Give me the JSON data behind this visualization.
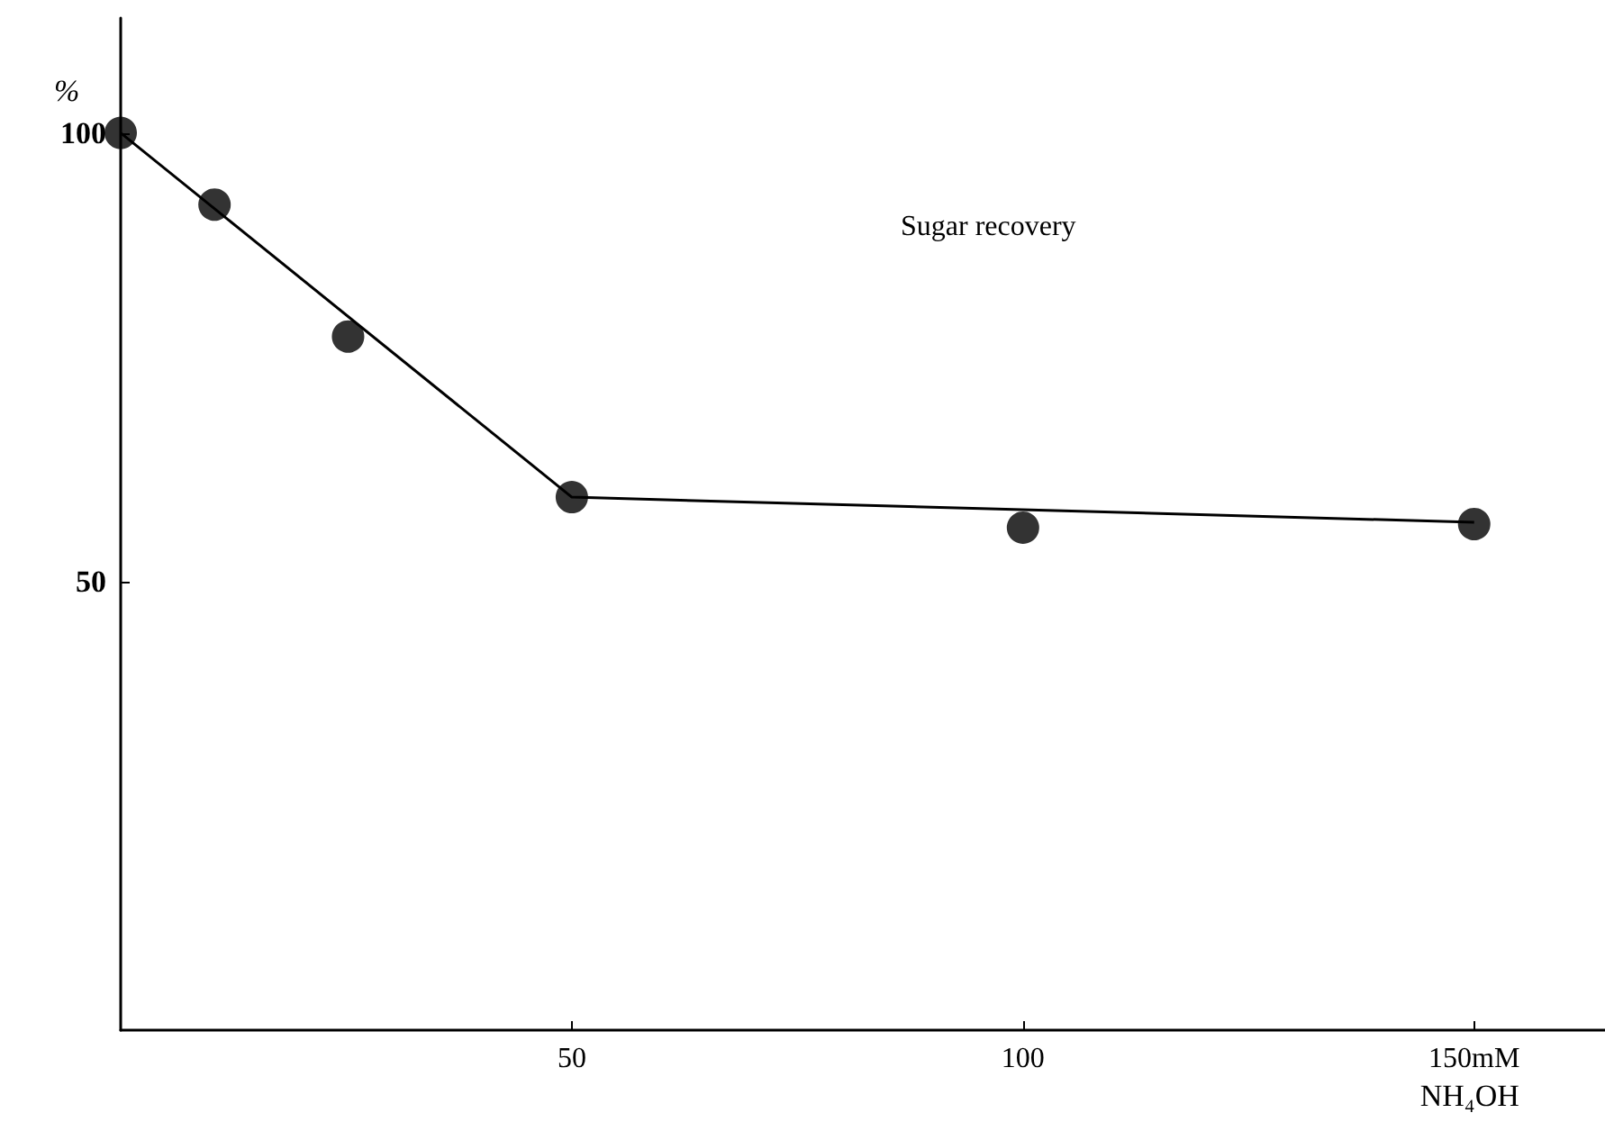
{
  "chart_data": {
    "type": "scatter",
    "xlabel": "NH₄OH",
    "ylabel": "%",
    "annotations": [
      "Sugar recovery"
    ],
    "xlim": [
      0,
      164.5
    ],
    "ylim": [
      0,
      112.8
    ],
    "xticks": [
      50,
      100,
      {
        "value": 150,
        "label": "150mM"
      }
    ],
    "yticks": [
      50,
      100
    ],
    "marker": "circle",
    "series": [
      {
        "color": "#000000",
        "x": [
          0,
          10.4,
          25.2,
          50,
          100,
          150
        ],
        "values": [
          100,
          92,
          77.3,
          59.4,
          56,
          56.4
        ]
      },
      {
        "type": "line",
        "color": "#000000",
        "marker": "none",
        "x": [
          0,
          50,
          150
        ],
        "values": [
          100,
          59.4,
          56.6
        ]
      }
    ]
  }
}
